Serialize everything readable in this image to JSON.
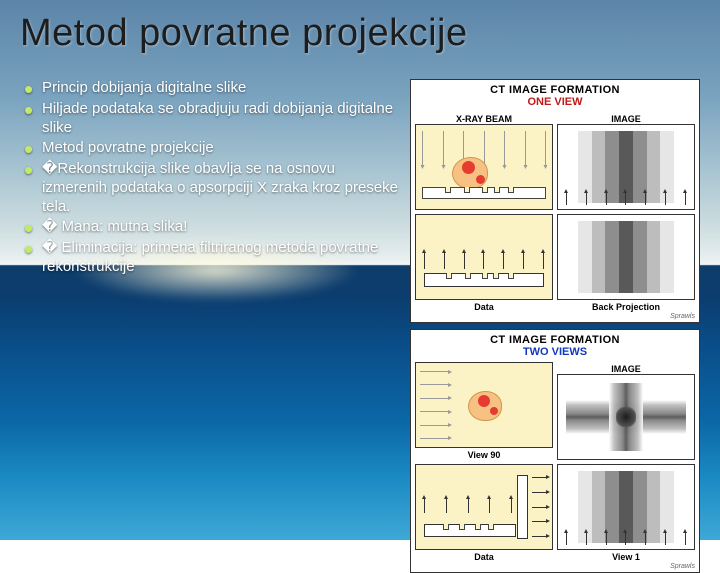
{
  "title": "Metod povratne projekcije",
  "bullets": [
    "Princip dobijanja digitalne slike",
    "Hiljade podataka se obradjuju radi dobijanja digitalne slike",
    "Metod povratne projekcije",
    "�Rekonstrukcija slike obavlja se na osnovu izmerenih podataka o apsorpciji X zraka kroz preseke tela.",
    "� Mana: mutna slika!",
    "� Eliminacija: primena filtriranog metoda povratne rekonstrukcije"
  ],
  "panels": {
    "one": {
      "title": "CT IMAGE FORMATION",
      "subtitle": "ONE VIEW",
      "subtitle_color": "#c01818",
      "cells": [
        "X-RAY BEAM",
        "IMAGE",
        "Data",
        "Back Projection"
      ],
      "image_gradient": [
        "#ffffff",
        "#e6e6e6",
        "#bdbdbd",
        "#8e8e8e",
        "#595959",
        "#8e8e8e",
        "#bdbdbd",
        "#e6e6e6",
        "#ffffff"
      ],
      "slab_notches_pct": [
        18,
        34,
        48,
        58,
        70
      ],
      "attrib": "Sprawls"
    },
    "two": {
      "title": "CT IMAGE FORMATION",
      "subtitle": "TWO VIEWS",
      "subtitle_color": "#1238c0",
      "cells": [
        "View 90",
        "IMAGE",
        "Data",
        "View 1"
      ],
      "attrib": "Sprawls"
    }
  },
  "colors": {
    "bullet_marker": "#c3e96a",
    "cell_bg": "#fbf3c5",
    "organ_fill": "#f6c182",
    "organ_border": "#d2964a",
    "organ_spot": "#e63b2f"
  }
}
